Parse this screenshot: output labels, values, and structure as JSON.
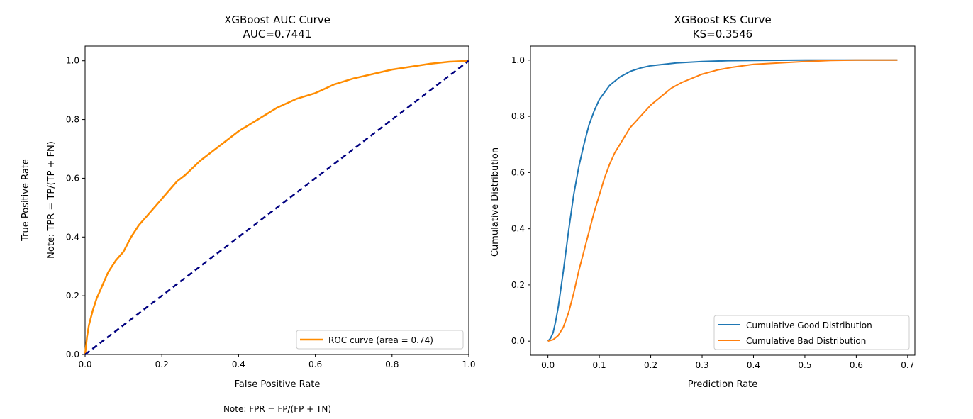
{
  "chart_data": [
    {
      "type": "line",
      "title": "XGBoost AUC Curve",
      "subtitle": "AUC=0.7441",
      "xlabel": "False Positive Rate",
      "ylabel": "True Positive Rate",
      "ylabel2": "Note: TPR = TP/(TP + FN)",
      "x_note": "Note: FPR = FP/(FP + TN)",
      "xlim": [
        0.0,
        1.0
      ],
      "ylim": [
        0.0,
        1.05
      ],
      "xticks": [
        "0.0",
        "0.2",
        "0.4",
        "0.6",
        "0.8",
        "1.0"
      ],
      "yticks": [
        "0.0",
        "0.2",
        "0.4",
        "0.6",
        "0.8",
        "1.0"
      ],
      "grid": false,
      "legend_position": "lower-right",
      "series": [
        {
          "name": "ROC curve (area = 0.74)",
          "color": "#ff8c00",
          "style": "solid",
          "x": [
            0.0,
            0.005,
            0.01,
            0.02,
            0.03,
            0.04,
            0.05,
            0.06,
            0.08,
            0.1,
            0.12,
            0.14,
            0.16,
            0.18,
            0.2,
            0.22,
            0.24,
            0.26,
            0.3,
            0.35,
            0.4,
            0.45,
            0.5,
            0.55,
            0.6,
            0.65,
            0.7,
            0.75,
            0.8,
            0.85,
            0.9,
            0.95,
            1.0
          ],
          "y": [
            0.0,
            0.06,
            0.1,
            0.15,
            0.19,
            0.22,
            0.25,
            0.28,
            0.32,
            0.35,
            0.4,
            0.44,
            0.47,
            0.5,
            0.53,
            0.56,
            0.59,
            0.61,
            0.66,
            0.71,
            0.76,
            0.8,
            0.84,
            0.87,
            0.89,
            0.92,
            0.94,
            0.955,
            0.97,
            0.98,
            0.99,
            0.997,
            1.0
          ]
        },
        {
          "name": "",
          "color": "#000080",
          "style": "dashed",
          "x": [
            0.0,
            1.0
          ],
          "y": [
            0.0,
            1.0
          ]
        }
      ]
    },
    {
      "type": "line",
      "title": "XGBoost KS Curve",
      "subtitle": "KS=0.3546",
      "xlabel": "Prediction Rate",
      "ylabel": "Cumulative Distribution",
      "xlim": [
        -0.034,
        0.714
      ],
      "ylim": [
        -0.05,
        1.05
      ],
      "xticks": [
        "0.0",
        "0.1",
        "0.2",
        "0.3",
        "0.4",
        "0.5",
        "0.6",
        "0.7"
      ],
      "yticks": [
        "0.0",
        "0.2",
        "0.4",
        "0.6",
        "0.8",
        "1.0"
      ],
      "grid": false,
      "legend_position": "lower-right",
      "series": [
        {
          "name": "Cumulative Good Distribution",
          "color": "#1f77b4",
          "x": [
            0.0,
            0.005,
            0.01,
            0.015,
            0.02,
            0.03,
            0.04,
            0.05,
            0.06,
            0.07,
            0.08,
            0.09,
            0.1,
            0.12,
            0.14,
            0.16,
            0.18,
            0.2,
            0.25,
            0.3,
            0.35,
            0.4,
            0.5,
            0.6,
            0.68
          ],
          "y": [
            0.0,
            0.01,
            0.03,
            0.07,
            0.12,
            0.25,
            0.39,
            0.52,
            0.62,
            0.7,
            0.77,
            0.82,
            0.86,
            0.91,
            0.94,
            0.96,
            0.972,
            0.98,
            0.99,
            0.995,
            0.998,
            0.999,
            1.0,
            1.0,
            1.0
          ]
        },
        {
          "name": "Cumulative Bad Distribution",
          "color": "#ff7f0e",
          "x": [
            0.0,
            0.01,
            0.02,
            0.03,
            0.04,
            0.05,
            0.06,
            0.07,
            0.08,
            0.09,
            0.1,
            0.11,
            0.12,
            0.13,
            0.14,
            0.15,
            0.16,
            0.18,
            0.2,
            0.22,
            0.24,
            0.26,
            0.28,
            0.3,
            0.33,
            0.36,
            0.4,
            0.45,
            0.5,
            0.55,
            0.6,
            0.68
          ],
          "y": [
            0.0,
            0.005,
            0.02,
            0.05,
            0.1,
            0.17,
            0.25,
            0.32,
            0.39,
            0.46,
            0.52,
            0.58,
            0.63,
            0.67,
            0.7,
            0.73,
            0.76,
            0.8,
            0.84,
            0.87,
            0.9,
            0.92,
            0.935,
            0.95,
            0.965,
            0.975,
            0.985,
            0.99,
            0.995,
            0.999,
            1.0,
            1.0
          ]
        }
      ]
    }
  ]
}
